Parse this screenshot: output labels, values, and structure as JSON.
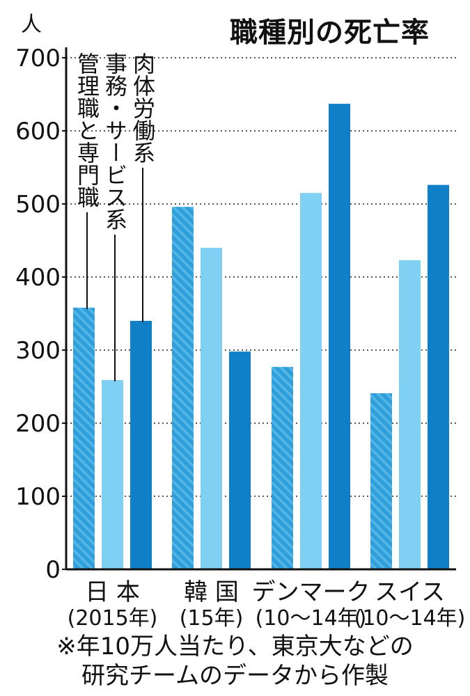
{
  "title": "職種別の死亡率",
  "unit": "人",
  "footnote": [
    "※年10万人当たり、東京大などの",
    "研究チームのデータから作製"
  ],
  "colors": {
    "manager": "#2f9fdc",
    "service": "#7fd0f2",
    "manual": "#0f7fc8",
    "grid": "#555555",
    "axis": "#111111"
  },
  "chart_data": {
    "type": "bar",
    "ylim": [
      0,
      700
    ],
    "yticks": [
      "0",
      "100",
      "200",
      "300",
      "400",
      "500",
      "600",
      "700"
    ],
    "ylabel": "人",
    "grid": "horizontal dotted",
    "categories": [
      [
        "日 本",
        "(2015年)"
      ],
      [
        "韓 国",
        "(15年)"
      ],
      [
        "デンマーク",
        "(10～14年)"
      ],
      [
        "スイス",
        "(10～14年)"
      ]
    ],
    "series": [
      {
        "name": "管理職と専門職",
        "values": [
          358,
          496,
          277,
          241
        ],
        "pattern": "hatched"
      },
      {
        "name": "事務・サービス系",
        "values": [
          259,
          440,
          515,
          423
        ]
      },
      {
        "name": "肉体労働系",
        "values": [
          340,
          298,
          637,
          526
        ]
      }
    ],
    "legend": "vertical labels with leader lines at top-left"
  }
}
